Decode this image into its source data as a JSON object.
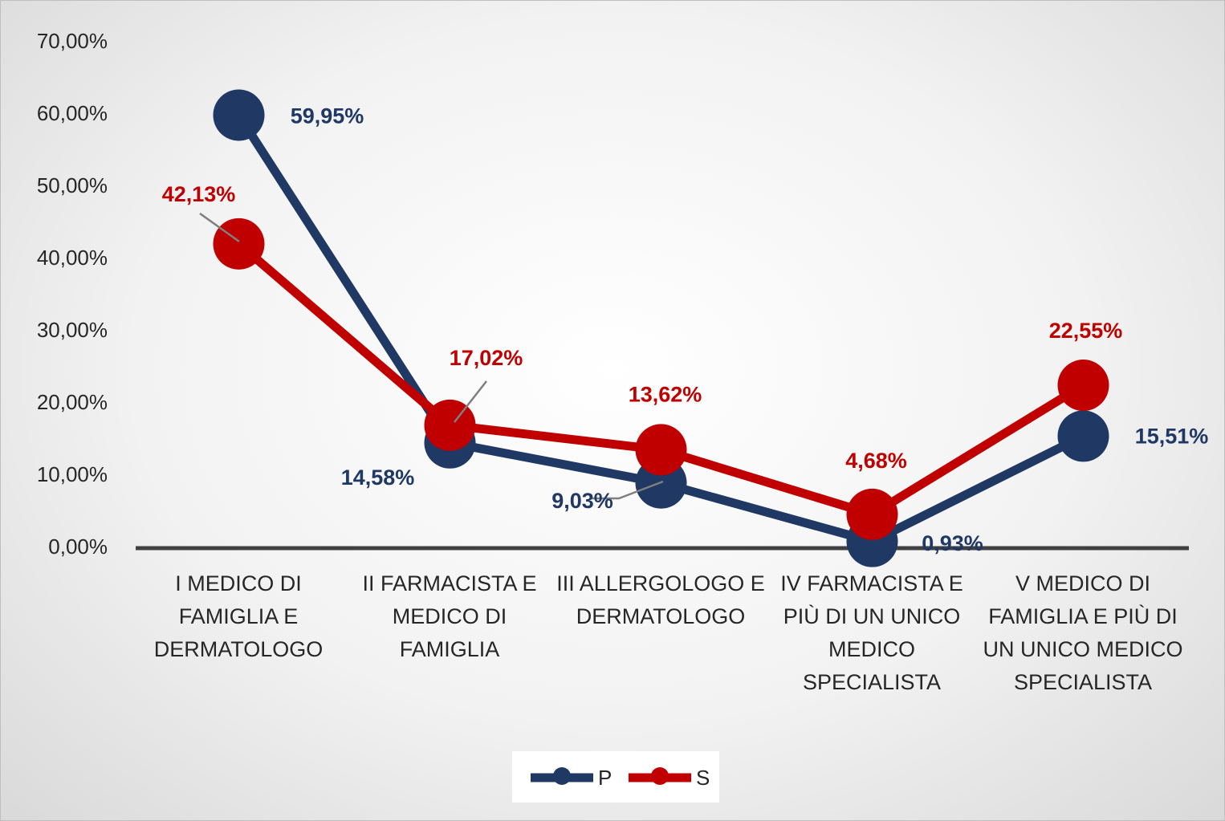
{
  "chart_data": {
    "type": "line",
    "categories": [
      "I MEDICO DI FAMIGLIA E DERMATOLOGO",
      "II FARMACISTA E MEDICO DI FAMIGLIA",
      "III ALLERGOLOGO E DERMATOLOGO",
      "IV FARMACISTA E PIÙ DI UN UNICO MEDICO SPECIALISTA",
      "V MEDICO DI FAMIGLIA E PIÙ DI UN UNICO MEDICO SPECIALISTA"
    ],
    "series": [
      {
        "name": "P",
        "color": "#1f3864",
        "values": [
          59.95,
          14.58,
          9.03,
          0.93,
          15.51
        ],
        "value_labels": [
          "59,95%",
          "14,58%",
          "9,03%",
          "0,93%",
          "15,51%"
        ]
      },
      {
        "name": "S",
        "color": "#c00000",
        "values": [
          42.13,
          17.02,
          13.62,
          4.68,
          22.55
        ],
        "value_labels": [
          "42,13%",
          "17,02%",
          "13,62%",
          "4,68%",
          "22,55%"
        ]
      }
    ],
    "ylim": [
      0,
      70
    ],
    "yticks": [
      {
        "value": 0,
        "label": "0,00%"
      },
      {
        "value": 10,
        "label": "10,00%"
      },
      {
        "value": 20,
        "label": "20,00%"
      },
      {
        "value": 30,
        "label": "30,00%"
      },
      {
        "value": 40,
        "label": "40,00%"
      },
      {
        "value": 50,
        "label": "50,00%"
      },
      {
        "value": 60,
        "label": "60,00%"
      },
      {
        "value": 70,
        "label": "70,00%"
      }
    ],
    "legend": "bottom"
  }
}
